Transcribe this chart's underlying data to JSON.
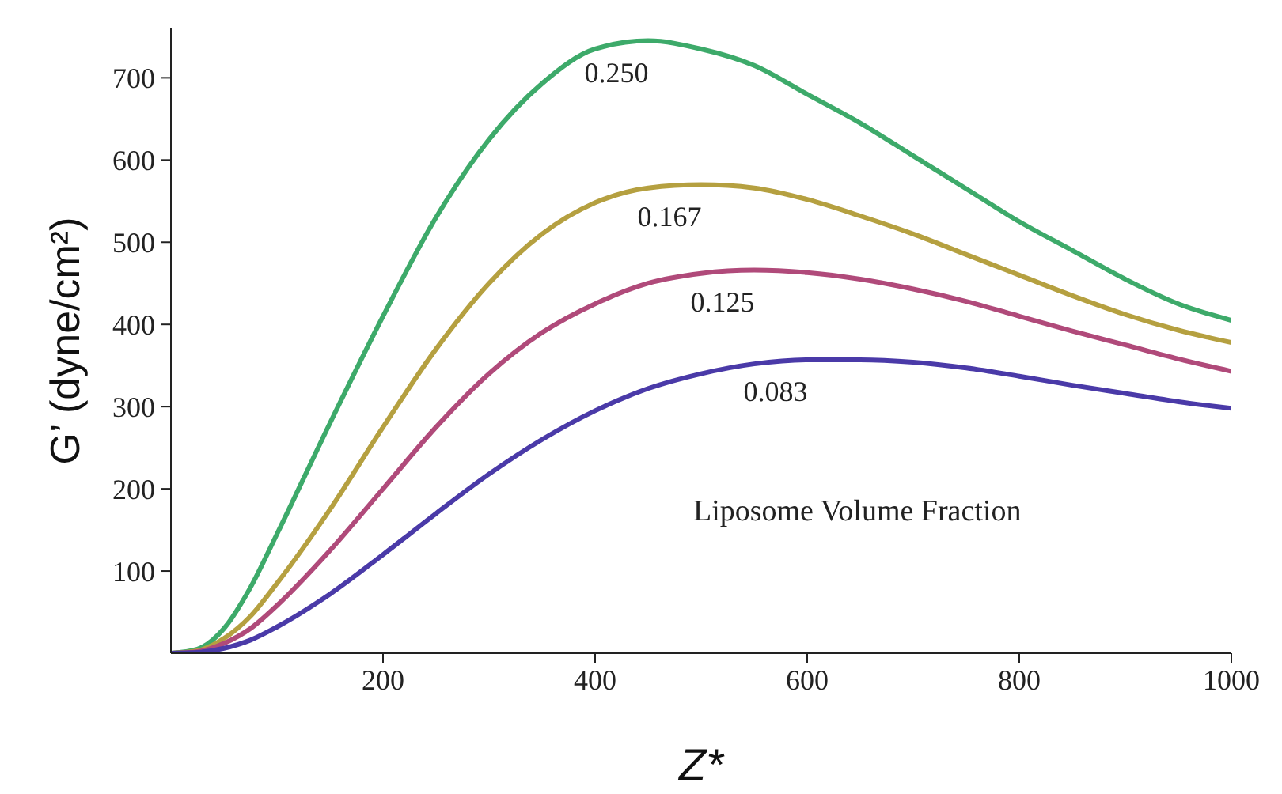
{
  "chart_data": {
    "type": "line",
    "xlabel": "Z*",
    "ylabel": "G’ (dyne/cm²)",
    "x": [
      0,
      25,
      50,
      75,
      100,
      150,
      200,
      250,
      300,
      350,
      400,
      450,
      500,
      550,
      600,
      650,
      700,
      750,
      800,
      850,
      900,
      950,
      1000
    ],
    "xlim": [
      0,
      1000
    ],
    "xticks": [
      200,
      400,
      600,
      800,
      1000
    ],
    "ylim": [
      0,
      760
    ],
    "yticks": [
      100,
      200,
      300,
      400,
      500,
      600,
      700
    ],
    "grid": false,
    "legend": false,
    "marker": "none",
    "line_style": "solid",
    "annotations": [
      "Liposome Volume Fraction"
    ],
    "series": [
      {
        "name": "0.250",
        "color": "#3daa6a",
        "values": [
          0,
          5,
          30,
          80,
          145,
          280,
          410,
          530,
          625,
          693,
          735,
          745,
          735,
          715,
          680,
          645,
          605,
          565,
          525,
          490,
          455,
          425,
          405
        ]
      },
      {
        "name": "0.167",
        "color": "#b5a040",
        "values": [
          0,
          3,
          18,
          45,
          85,
          175,
          275,
          370,
          450,
          510,
          548,
          566,
          570,
          566,
          552,
          532,
          510,
          485,
          460,
          435,
          412,
          393,
          378
        ]
      },
      {
        "name": "0.125",
        "color": "#b04a7a",
        "values": [
          0,
          2,
          12,
          30,
          58,
          125,
          200,
          275,
          340,
          390,
          425,
          450,
          462,
          466,
          463,
          455,
          443,
          428,
          410,
          392,
          375,
          358,
          343
        ]
      },
      {
        "name": "0.083",
        "color": "#4a3aa8",
        "values": [
          0,
          1,
          6,
          16,
          32,
          72,
          120,
          170,
          218,
          260,
          295,
          322,
          340,
          352,
          357,
          357,
          354,
          347,
          337,
          326,
          316,
          306,
          298
        ]
      }
    ]
  }
}
